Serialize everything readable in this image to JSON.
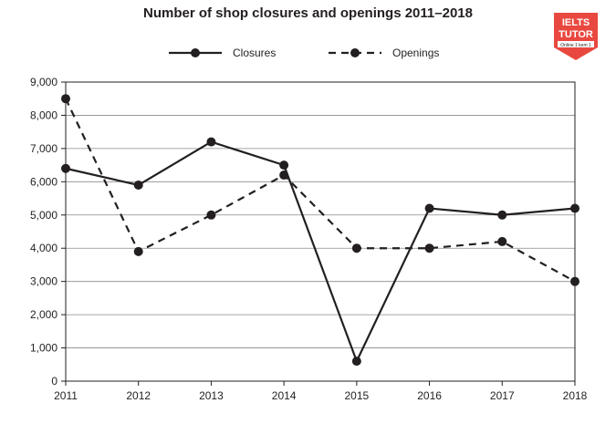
{
  "chart_data": {
    "type": "line",
    "title": "Number of shop closures and openings 2011–2018",
    "x": [
      "2011",
      "2012",
      "2013",
      "2014",
      "2015",
      "2016",
      "2017",
      "2018"
    ],
    "series": [
      {
        "name": "Closures",
        "values": [
          6400,
          5900,
          7200,
          6500,
          600,
          5200,
          5000,
          5200
        ],
        "style": "solid",
        "color": "#231f20"
      },
      {
        "name": "Openings",
        "values": [
          8500,
          3900,
          5000,
          6200,
          4000,
          4000,
          4200,
          3000
        ],
        "style": "dashed",
        "color": "#231f20"
      }
    ],
    "ylim": [
      0,
      9000
    ],
    "yticks": [
      0,
      1000,
      2000,
      3000,
      4000,
      5000,
      6000,
      7000,
      8000,
      9000
    ],
    "ytick_labels": [
      "0",
      "1,000",
      "2,000",
      "3,000",
      "4,000",
      "5,000",
      "6,000",
      "7,000",
      "8,000",
      "9,000"
    ],
    "grid": "horizontal",
    "legend_position": "top-center"
  },
  "logo": {
    "line1": "IELTS",
    "line2": "TUTOR",
    "line3": "Online 1 kem 1",
    "color": "#e8483f"
  }
}
